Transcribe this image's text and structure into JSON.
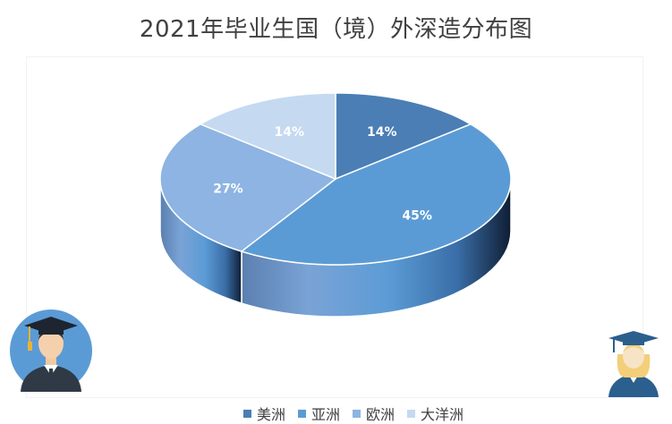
{
  "title": "2021年毕业生国（境）外深造分布图",
  "chart_data": {
    "type": "pie",
    "title": "2021年毕业生国（境）外深造分布图",
    "categories": [
      "美洲",
      "亚洲",
      "欧洲",
      "大洋洲"
    ],
    "values": [
      14,
      45,
      27,
      14
    ],
    "data_labels": [
      "14%",
      "45%",
      "27%",
      "14%"
    ],
    "colors": [
      "#4a7eb5",
      "#5b9bd5",
      "#8db4e2",
      "#c5d9f1"
    ],
    "style": "3d",
    "legend_position": "bottom"
  },
  "legend": {
    "items": [
      {
        "label": "美洲",
        "color": "#4a7eb5"
      },
      {
        "label": "亚洲",
        "color": "#5b9bd5"
      },
      {
        "label": "欧洲",
        "color": "#8db4e2"
      },
      {
        "label": "大洋洲",
        "color": "#c5d9f1"
      }
    ]
  },
  "decor": {
    "left_icon": "graduate-male-icon",
    "right_icon": "graduate-female-icon"
  }
}
